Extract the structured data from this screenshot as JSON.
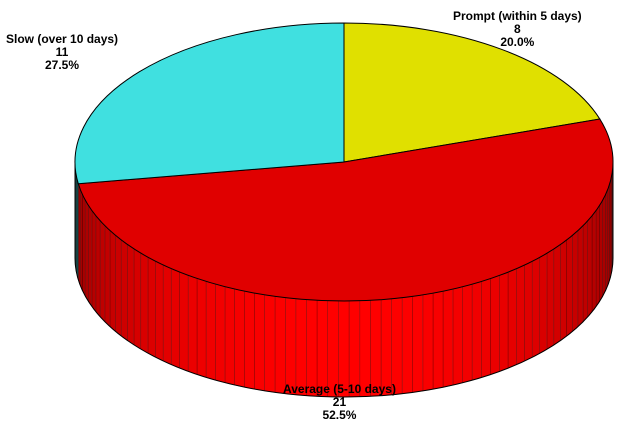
{
  "chart_data": {
    "type": "pie",
    "style": "3d",
    "slices": [
      {
        "label": "Prompt (within 5 days)",
        "value": 8,
        "percent": "20.0%",
        "color": "#e0e000",
        "side_color": "#8a8a00"
      },
      {
        "label": "Average (5-10 days)",
        "value": 21,
        "percent": "52.5%",
        "color": "#e00000",
        "side_color": "#ff0000"
      },
      {
        "label": "Slow (over 10 days)",
        "value": 11,
        "percent": "27.5%",
        "color": "#40e0e0",
        "side_color": "#208080"
      }
    ],
    "total": 40,
    "start_angle": "12 o'clock",
    "direction": "clockwise",
    "outline_color": "#000000"
  }
}
